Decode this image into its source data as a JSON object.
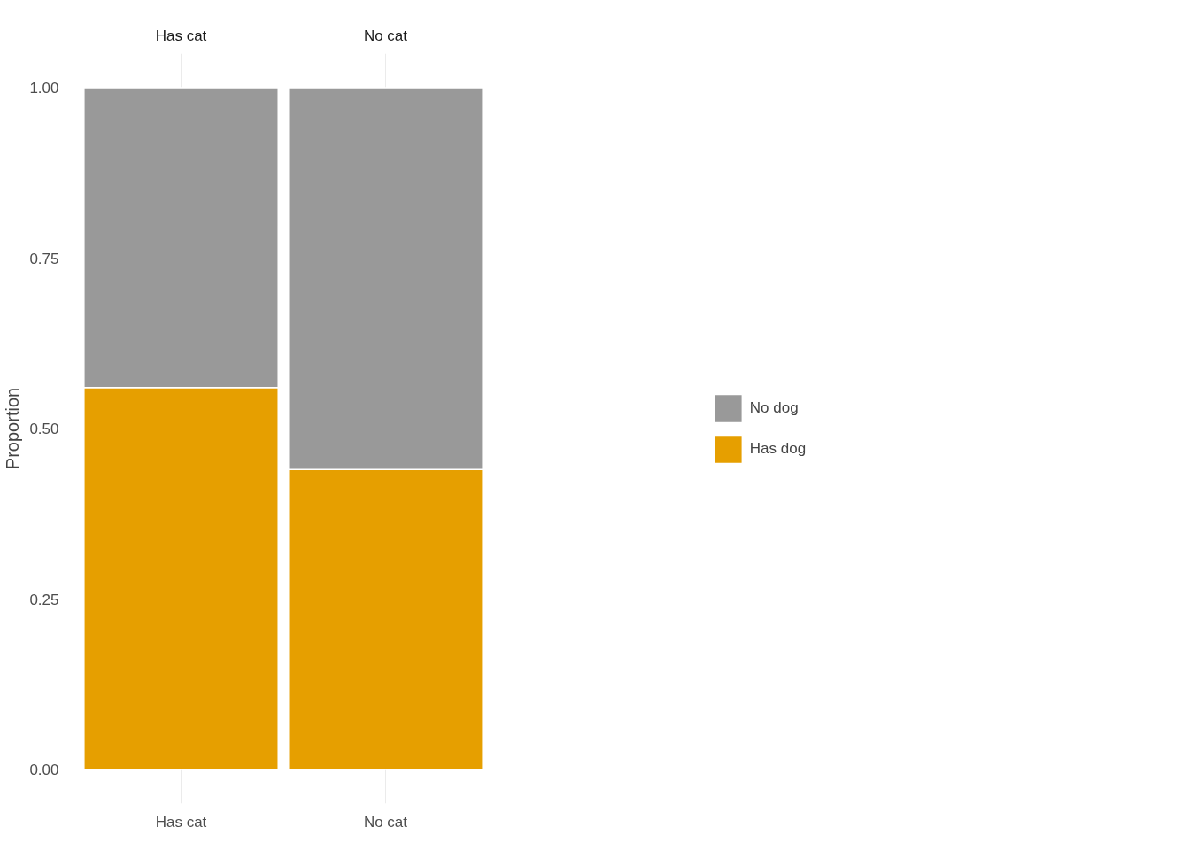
{
  "chart_data": {
    "type": "bar",
    "stacked": true,
    "ylabel": "Proportion",
    "categories": [
      "Has cat",
      "No cat"
    ],
    "series": [
      {
        "name": "Has dog",
        "color": "#e69f00",
        "values": [
          0.56,
          0.44
        ]
      },
      {
        "name": "No dog",
        "color": "#999999",
        "values": [
          0.44,
          0.56
        ]
      }
    ],
    "ylim": [
      -0.05,
      1.05
    ],
    "yticks": [
      {
        "value": 0,
        "label": "0.00"
      },
      {
        "value": 0.25,
        "label": "0.25"
      },
      {
        "value": 0.5,
        "label": "0.50"
      },
      {
        "value": 0.75,
        "label": "0.75"
      },
      {
        "value": 1,
        "label": "1.00"
      }
    ],
    "grid": "x",
    "legend": "right"
  }
}
